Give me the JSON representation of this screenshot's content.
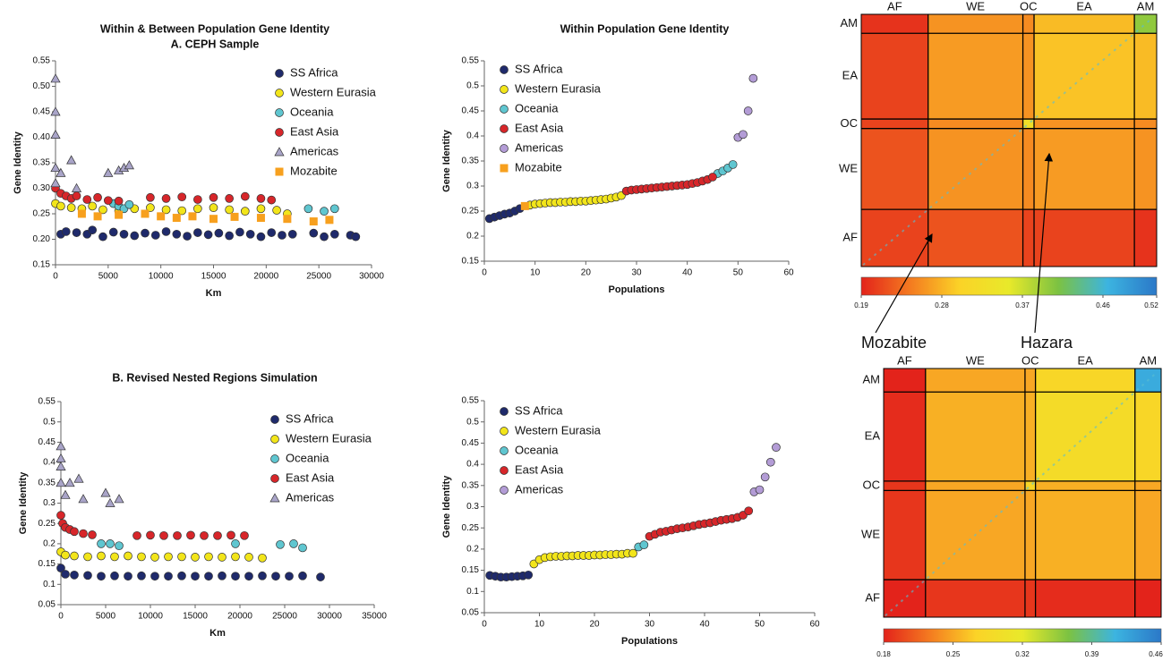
{
  "chart_data": [
    {
      "type": "scatter",
      "title": "Within & Between Population Gene Identity",
      "subtitle": "A. CEPH Sample",
      "xlabel": "Km",
      "ylabel": "Gene Identity",
      "xlim": [
        0,
        30000
      ],
      "xticks": [
        0,
        5000,
        10000,
        15000,
        20000,
        25000,
        30000
      ],
      "ylim": [
        0.15,
        0.55
      ],
      "yticks": [
        0.15,
        {
          "value": 0.2,
          "label": "0.20"
        },
        0.25,
        {
          "value": 0.3,
          "label": "0.30"
        },
        0.35,
        {
          "value": 0.4,
          "label": "0.40"
        },
        0.45,
        {
          "value": 0.5,
          "label": "0.50"
        },
        0.55
      ],
      "legend": "upper right",
      "series": [
        {
          "name": "SS Africa",
          "color": "#1f2a6b",
          "marker": "circle",
          "x": [
            500,
            1000,
            2000,
            3000,
            3500,
            4500,
            5500,
            6500,
            7500,
            8500,
            9500,
            10500,
            11500,
            12500,
            13500,
            14500,
            15500,
            16500,
            17500,
            18500,
            19500,
            20500,
            21500,
            22500,
            24500,
            25500,
            26500,
            28000,
            28500
          ],
          "values": [
            0.21,
            0.215,
            0.213,
            0.21,
            0.218,
            0.205,
            0.214,
            0.21,
            0.207,
            0.212,
            0.208,
            0.215,
            0.21,
            0.206,
            0.213,
            0.209,
            0.212,
            0.207,
            0.214,
            0.21,
            0.205,
            0.213,
            0.208,
            0.21,
            0.212,
            0.205,
            0.21,
            0.208,
            0.205
          ]
        },
        {
          "name": "Western Eurasia",
          "color": "#f2e51a",
          "marker": "circle",
          "x": [
            0,
            500,
            1500,
            2500,
            3500,
            4500,
            6000,
            7500,
            9000,
            10500,
            12000,
            13500,
            15000,
            16500,
            18000,
            19500,
            21000,
            22000
          ],
          "values": [
            0.27,
            0.265,
            0.262,
            0.26,
            0.265,
            0.258,
            0.255,
            0.26,
            0.262,
            0.258,
            0.256,
            0.26,
            0.262,
            0.258,
            0.255,
            0.26,
            0.257,
            0.25
          ]
        },
        {
          "name": "Oceania",
          "color": "#5fc6d0",
          "marker": "circle",
          "x": [
            5500,
            6000,
            6500,
            7000,
            24000,
            25500,
            26500
          ],
          "values": [
            0.27,
            0.265,
            0.26,
            0.268,
            0.26,
            0.255,
            0.26
          ]
        },
        {
          "name": "East Asia",
          "color": "#d7262a",
          "marker": "circle",
          "x": [
            0,
            500,
            1000,
            1500,
            2000,
            3000,
            4000,
            5000,
            6000,
            9000,
            10500,
            12000,
            13500,
            15000,
            16500,
            18000,
            19500,
            20500
          ],
          "values": [
            0.3,
            0.29,
            0.285,
            0.28,
            0.285,
            0.278,
            0.282,
            0.276,
            0.275,
            0.282,
            0.28,
            0.283,
            0.278,
            0.282,
            0.28,
            0.284,
            0.28,
            0.277
          ]
        },
        {
          "name": "Americas",
          "color": "#a9a4c8",
          "marker": "triangle",
          "x": [
            0,
            0,
            0,
            0,
            0,
            500,
            1500,
            2000,
            5000,
            6000,
            6500,
            7000
          ],
          "values": [
            0.515,
            0.45,
            0.405,
            0.34,
            0.31,
            0.33,
            0.355,
            0.3,
            0.33,
            0.335,
            0.34,
            0.345
          ]
        },
        {
          "name": "Mozabite",
          "color": "#f7a01e",
          "marker": "square",
          "x": [
            2500,
            4000,
            6000,
            8500,
            10000,
            11500,
            13000,
            15000,
            17000,
            19500,
            22000,
            24500,
            26000
          ],
          "values": [
            0.25,
            0.245,
            0.248,
            0.25,
            0.245,
            0.242,
            0.245,
            0.24,
            0.244,
            0.242,
            0.24,
            0.235,
            0.238
          ]
        }
      ]
    },
    {
      "type": "scatter",
      "title": "Within Population Gene Identity",
      "xlabel": "Populations",
      "ylabel": "Gene Identity",
      "xlim": [
        0,
        60
      ],
      "xticks": [
        0,
        10,
        20,
        30,
        40,
        50,
        60
      ],
      "ylim": [
        0.15,
        0.55
      ],
      "yticks": [
        0.15,
        0.2,
        0.25,
        0.3,
        0.35,
        0.4,
        0.45,
        0.5,
        0.55
      ],
      "legend": "upper left",
      "series": [
        {
          "name": "SS Africa",
          "color": "#1f2a6b",
          "marker": "circle",
          "x": [
            1,
            2,
            3,
            4,
            5,
            6,
            7
          ],
          "values": [
            0.235,
            0.238,
            0.241,
            0.244,
            0.246,
            0.25,
            0.255
          ]
        },
        {
          "name": "Western Eurasia",
          "color": "#f2e51a",
          "marker": "circle",
          "x": [
            9,
            10,
            11,
            12,
            13,
            14,
            15,
            16,
            17,
            18,
            19,
            20,
            21,
            22,
            23,
            24,
            25,
            26,
            27
          ],
          "values": [
            0.262,
            0.264,
            0.265,
            0.266,
            0.267,
            0.267,
            0.268,
            0.268,
            0.269,
            0.269,
            0.27,
            0.27,
            0.271,
            0.272,
            0.273,
            0.274,
            0.276,
            0.278,
            0.281
          ]
        },
        {
          "name": "Oceania",
          "color": "#5fc6d0",
          "marker": "circle",
          "x": [
            46,
            47,
            48,
            49
          ],
          "values": [
            0.325,
            0.33,
            0.336,
            0.343
          ]
        },
        {
          "name": "East Asia",
          "color": "#d7262a",
          "marker": "circle",
          "x": [
            28,
            29,
            30,
            31,
            32,
            33,
            34,
            35,
            36,
            37,
            38,
            39,
            40,
            41,
            42,
            43,
            44,
            45
          ],
          "values": [
            0.29,
            0.292,
            0.293,
            0.294,
            0.295,
            0.296,
            0.297,
            0.298,
            0.299,
            0.3,
            0.301,
            0.302,
            0.303,
            0.305,
            0.307,
            0.31,
            0.313,
            0.318
          ]
        },
        {
          "name": "Americas",
          "color": "#b39cd6",
          "marker": "circle",
          "x": [
            50,
            51,
            52,
            53
          ],
          "values": [
            0.397,
            0.403,
            0.45,
            0.515
          ]
        },
        {
          "name": "Mozabite",
          "color": "#f7a01e",
          "marker": "square",
          "x": [
            8
          ],
          "values": [
            0.26
          ]
        }
      ]
    },
    {
      "type": "heatmap",
      "regions": [
        "AF",
        "WE",
        "OC",
        "EA",
        "AM"
      ],
      "region_sizes": [
        12,
        17,
        2,
        18,
        4
      ],
      "values": [
        [
          0.21,
          0.22,
          0.21,
          0.21,
          0.2
        ],
        [
          0.22,
          0.26,
          0.255,
          0.265,
          0.26
        ],
        [
          0.21,
          0.255,
          0.33,
          0.26,
          0.255
        ],
        [
          0.21,
          0.265,
          0.26,
          0.29,
          0.285
        ],
        [
          0.2,
          0.26,
          0.255,
          0.285,
          0.4
        ]
      ],
      "vlim": [
        0.19,
        0.52
      ],
      "cticks": [
        0.19,
        0.28,
        0.37,
        0.46,
        0.52
      ],
      "colorscale": [
        "#e3231b",
        "#f47b20",
        "#fbd327",
        "#e8e92a",
        "#7cc242",
        "#3cb4e0",
        "#2b78c8"
      ],
      "annotations": [
        "Mozabite",
        "Hazara"
      ]
    },
    {
      "type": "scatter",
      "title": "B. Revised Nested Regions Simulation",
      "xlabel": "Km",
      "ylabel": "Gene Identity",
      "xlim": [
        0,
        35000
      ],
      "xticks": [
        0,
        5000,
        10000,
        15000,
        20000,
        25000,
        30000,
        35000
      ],
      "ylim": [
        0.05,
        0.55
      ],
      "yticks": [
        0.05,
        0.1,
        0.15,
        0.2,
        0.25,
        0.3,
        0.35,
        0.4,
        0.45,
        0.5,
        0.55
      ],
      "legend": "upper right",
      "series": [
        {
          "name": "SS Africa",
          "color": "#1f2a6b",
          "marker": "circle",
          "x": [
            0,
            500,
            1500,
            3000,
            4500,
            6000,
            7500,
            9000,
            10500,
            12000,
            13500,
            15000,
            16500,
            18000,
            19500,
            21000,
            22500,
            24000,
            25500,
            27000,
            29000
          ],
          "values": [
            0.14,
            0.125,
            0.123,
            0.122,
            0.12,
            0.121,
            0.12,
            0.121,
            0.12,
            0.12,
            0.121,
            0.12,
            0.12,
            0.121,
            0.12,
            0.12,
            0.121,
            0.12,
            0.12,
            0.121,
            0.118
          ]
        },
        {
          "name": "Western Eurasia",
          "color": "#f2e51a",
          "marker": "circle",
          "x": [
            0,
            500,
            1500,
            3000,
            4500,
            6000,
            7500,
            9000,
            10500,
            12000,
            13500,
            15000,
            16500,
            18000,
            19500,
            21000,
            22500
          ],
          "values": [
            0.18,
            0.172,
            0.17,
            0.168,
            0.17,
            0.168,
            0.17,
            0.168,
            0.167,
            0.168,
            0.168,
            0.167,
            0.168,
            0.167,
            0.168,
            0.167,
            0.165
          ]
        },
        {
          "name": "Oceania",
          "color": "#5fc6d0",
          "marker": "circle",
          "x": [
            4500,
            5500,
            6500,
            19500,
            24500,
            26000,
            27000
          ],
          "values": [
            0.2,
            0.2,
            0.195,
            0.2,
            0.198,
            0.2,
            0.19
          ]
        },
        {
          "name": "East Asia",
          "color": "#d7262a",
          "marker": "circle",
          "x": [
            0,
            200,
            500,
            1000,
            1500,
            2500,
            3500,
            8500,
            10000,
            11500,
            13000,
            14500,
            16000,
            17500,
            19000,
            20500
          ],
          "values": [
            0.27,
            0.25,
            0.24,
            0.235,
            0.23,
            0.225,
            0.222,
            0.22,
            0.221,
            0.22,
            0.22,
            0.221,
            0.22,
            0.22,
            0.221,
            0.22
          ]
        },
        {
          "name": "Americas",
          "color": "#a9a4c8",
          "marker": "triangle",
          "x": [
            0,
            0,
            0,
            0,
            500,
            1000,
            2000,
            2500,
            5000,
            5500,
            6500
          ],
          "values": [
            0.44,
            0.41,
            0.39,
            0.35,
            0.32,
            0.35,
            0.36,
            0.31,
            0.325,
            0.3,
            0.31
          ]
        }
      ]
    },
    {
      "type": "scatter",
      "xlabel": "Populations",
      "ylabel": "Gene Identity",
      "xlim": [
        0,
        60
      ],
      "xticks": [
        0,
        10,
        20,
        30,
        40,
        50,
        60
      ],
      "ylim": [
        0.05,
        0.55
      ],
      "yticks": [
        0.05,
        0.1,
        0.15,
        0.2,
        0.25,
        0.3,
        0.35,
        0.4,
        0.45,
        0.5,
        0.55
      ],
      "legend": "upper left",
      "series": [
        {
          "name": "SS Africa",
          "color": "#1f2a6b",
          "marker": "circle",
          "x": [
            1,
            2,
            3,
            4,
            5,
            6,
            7,
            8
          ],
          "values": [
            0.138,
            0.136,
            0.134,
            0.134,
            0.135,
            0.136,
            0.137,
            0.139
          ]
        },
        {
          "name": "Western Eurasia",
          "color": "#f2e51a",
          "marker": "circle",
          "x": [
            9,
            10,
            11,
            12,
            13,
            14,
            15,
            16,
            17,
            18,
            19,
            20,
            21,
            22,
            23,
            24,
            25,
            26,
            27
          ],
          "values": [
            0.165,
            0.175,
            0.18,
            0.182,
            0.183,
            0.183,
            0.184,
            0.184,
            0.185,
            0.185,
            0.185,
            0.186,
            0.186,
            0.187,
            0.187,
            0.188,
            0.188,
            0.19,
            0.19
          ]
        },
        {
          "name": "Oceania",
          "color": "#5fc6d0",
          "marker": "circle",
          "x": [
            28,
            29
          ],
          "values": [
            0.205,
            0.21
          ]
        },
        {
          "name": "East Asia",
          "color": "#d7262a",
          "marker": "circle",
          "x": [
            30,
            31,
            32,
            33,
            34,
            35,
            36,
            37,
            38,
            39,
            40,
            41,
            42,
            43,
            44,
            45,
            46,
            47,
            48
          ],
          "values": [
            0.23,
            0.235,
            0.24,
            0.242,
            0.245,
            0.248,
            0.25,
            0.252,
            0.255,
            0.258,
            0.26,
            0.262,
            0.265,
            0.268,
            0.27,
            0.272,
            0.275,
            0.28,
            0.29
          ]
        },
        {
          "name": "Americas",
          "color": "#b39cd6",
          "marker": "circle",
          "x": [
            49,
            50,
            51,
            52,
            53
          ],
          "values": [
            0.335,
            0.34,
            0.37,
            0.405,
            0.44
          ]
        }
      ]
    },
    {
      "type": "heatmap",
      "regions": [
        "AF",
        "WE",
        "OC",
        "EA",
        "AM"
      ],
      "region_sizes": [
        8,
        19,
        2,
        19,
        5
      ],
      "values": [
        [
          0.18,
          0.19,
          0.19,
          0.185,
          0.18
        ],
        [
          0.19,
          0.25,
          0.25,
          0.255,
          0.25
        ],
        [
          0.19,
          0.25,
          0.28,
          0.255,
          0.25
        ],
        [
          0.185,
          0.255,
          0.255,
          0.29,
          0.28
        ],
        [
          0.18,
          0.25,
          0.25,
          0.28,
          0.42
        ]
      ],
      "vlim": [
        0.18,
        0.46
      ],
      "cticks": [
        0.18,
        0.25,
        0.32,
        0.39,
        0.46
      ],
      "colorscale": [
        "#e3231b",
        "#f47b20",
        "#fbd327",
        "#e8e92a",
        "#7cc242",
        "#3cb4e0",
        "#2b78c8"
      ]
    }
  ]
}
